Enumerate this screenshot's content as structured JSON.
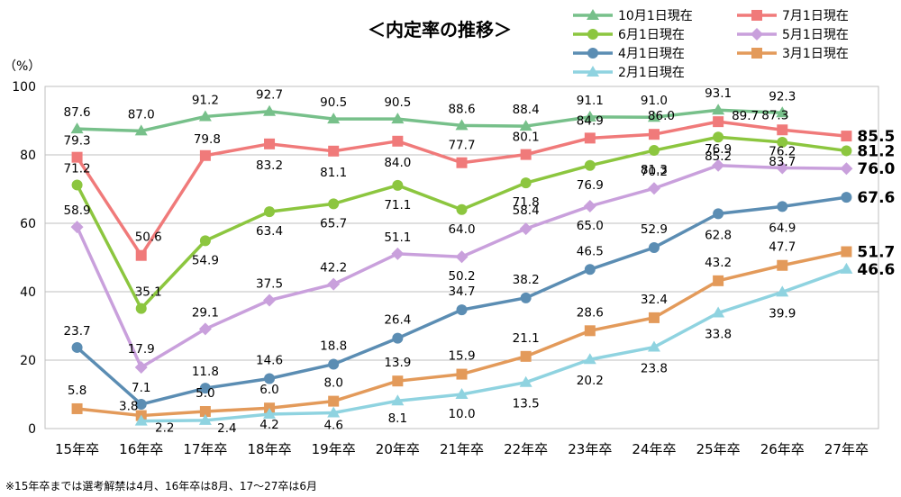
{
  "chart_data": {
    "type": "line",
    "title": "＜内定率の推移＞",
    "ylabel": "（%）",
    "ylim": [
      0,
      100
    ],
    "yticks": [
      0,
      20,
      40,
      60,
      80,
      100
    ],
    "grid": true,
    "legend_position": "top-right",
    "categories": [
      "15年卒",
      "16年卒",
      "17年卒",
      "18年卒",
      "19年卒",
      "20年卒",
      "21年卒",
      "22年卒",
      "23年卒",
      "24年卒",
      "25年卒",
      "26年卒",
      "27年卒"
    ],
    "series": [
      {
        "name": "10月1日現在",
        "color": "#77c08a",
        "marker": "triangle",
        "values": [
          87.6,
          87.0,
          91.2,
          92.7,
          90.5,
          90.5,
          88.6,
          88.4,
          91.1,
          91.0,
          93.1,
          92.3,
          null
        ],
        "labels": [
          "87.6",
          "87.0",
          "91.2",
          "92.7",
          "90.5",
          "90.5",
          "88.6",
          "88.4",
          "91.1",
          "91.0",
          "93.1",
          "92.3",
          null
        ]
      },
      {
        "name": "7月1日現在",
        "color": "#f07a7a",
        "marker": "square",
        "values": [
          79.3,
          50.6,
          79.8,
          83.2,
          81.1,
          84.0,
          77.7,
          80.1,
          84.9,
          86.0,
          89.7,
          87.3,
          85.5
        ],
        "labels": [
          "79.3",
          "50.6",
          "79.8",
          "83.2",
          "81.1",
          "84.0",
          "77.7",
          "80.1",
          "84.9",
          "86.0",
          "89.7",
          "87.3",
          "85.5"
        ]
      },
      {
        "name": "6月1日現在",
        "color": "#8cc63f",
        "marker": "circle",
        "values": [
          71.2,
          35.1,
          54.9,
          63.4,
          65.7,
          71.1,
          64.0,
          71.8,
          76.9,
          81.3,
          85.2,
          83.7,
          81.2
        ],
        "labels": [
          "71.2",
          "35.1",
          "54.9",
          "63.4",
          "65.7",
          "71.1",
          "64.0",
          "71.8",
          "76.9",
          "81.3",
          "85.2",
          "83.7",
          "81.2"
        ]
      },
      {
        "name": "5月1日現在",
        "color": "#c9a0dc",
        "marker": "diamond",
        "values": [
          58.9,
          17.9,
          29.1,
          37.5,
          42.2,
          51.1,
          50.2,
          58.4,
          65.0,
          70.2,
          76.9,
          76.2,
          76.0
        ],
        "labels": [
          "58.9",
          "17.9",
          "29.1",
          "37.5",
          "42.2",
          "51.1",
          "50.2",
          "58.4",
          "65.0",
          "70.2",
          "76.9",
          "76.2",
          "76.0"
        ]
      },
      {
        "name": "4月1日現在",
        "color": "#5b8db3",
        "marker": "circle",
        "values": [
          23.7,
          7.1,
          11.8,
          14.6,
          18.8,
          26.4,
          34.7,
          38.2,
          46.5,
          52.9,
          62.8,
          64.9,
          67.6
        ],
        "labels": [
          "23.7",
          "7.1",
          "11.8",
          "14.6",
          "18.8",
          "26.4",
          "34.7",
          "38.2",
          "46.5",
          "52.9",
          "62.8",
          "64.9",
          "67.6"
        ]
      },
      {
        "name": "3月1日現在",
        "color": "#e39a5a",
        "marker": "square",
        "values": [
          5.8,
          3.8,
          5.0,
          6.0,
          8.0,
          13.9,
          15.9,
          21.1,
          28.6,
          32.4,
          43.2,
          47.7,
          51.7
        ],
        "labels": [
          "5.8",
          "3.8",
          "5.0",
          "6.0",
          "8.0",
          "13.9",
          "15.9",
          "21.1",
          "28.6",
          "32.4",
          "43.2",
          "47.7",
          "51.7"
        ]
      },
      {
        "name": "2月1日現在",
        "color": "#8fd3e0",
        "marker": "triangle",
        "values": [
          null,
          2.2,
          2.4,
          4.2,
          4.6,
          8.1,
          10.0,
          13.5,
          20.2,
          23.8,
          33.8,
          39.9,
          46.6
        ],
        "labels": [
          null,
          "2.2",
          "2.4",
          "4.2",
          "4.6",
          "8.1",
          "10.0",
          "13.5",
          "20.2",
          "23.8",
          "33.8",
          "39.9",
          "46.6"
        ]
      }
    ],
    "footnote": "※15年卒までは選考解禁は4月、16年卒は8月、17～27卒は6月"
  }
}
